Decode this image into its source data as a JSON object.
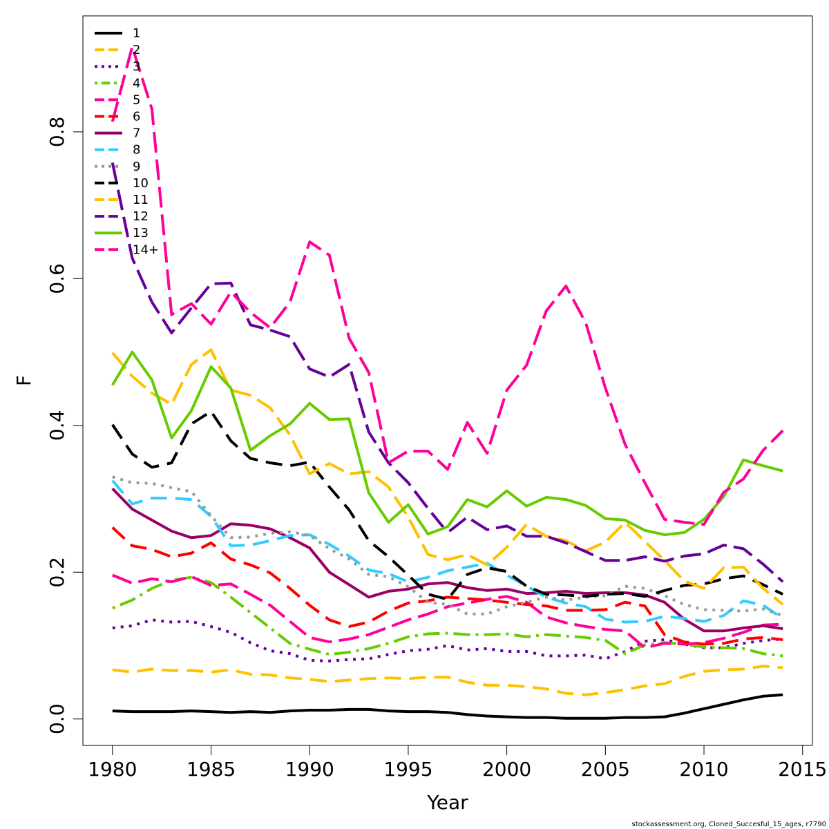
{
  "chart_data": {
    "type": "line",
    "xlabel": "Year",
    "ylabel": "F",
    "xlim": [
      1978.5,
      2015.5
    ],
    "ylim": [
      -0.036,
      0.958
    ],
    "x_ticks": [
      1980,
      1985,
      1990,
      1995,
      2000,
      2005,
      2010,
      2015
    ],
    "y_ticks": [
      0.0,
      0.2,
      0.4,
      0.6,
      0.8
    ],
    "x_tick_labels": [
      "1980",
      "1985",
      "1990",
      "1995",
      "2000",
      "2005",
      "2010",
      "2015"
    ],
    "y_tick_labels": [
      "0.0",
      "0.2",
      "0.4",
      "0.6",
      "0.8"
    ],
    "legend_position": "top-left",
    "x": [
      1980,
      1981,
      1982,
      1983,
      1984,
      1985,
      1986,
      1987,
      1988,
      1989,
      1990,
      1991,
      1992,
      1993,
      1994,
      1995,
      1996,
      1997,
      1998,
      1999,
      2000,
      2001,
      2002,
      2003,
      2004,
      2005,
      2006,
      2007,
      2008,
      2009,
      2010,
      2011,
      2012,
      2013,
      2014
    ],
    "series": [
      {
        "name": "1",
        "color": "#000000",
        "dash": "solid",
        "values": [
          0.011,
          0.01,
          0.01,
          0.01,
          0.011,
          0.01,
          0.009,
          0.01,
          0.009,
          0.011,
          0.012,
          0.012,
          0.013,
          0.013,
          0.011,
          0.01,
          0.01,
          0.009,
          0.006,
          0.004,
          0.003,
          0.002,
          0.002,
          0.001,
          0.001,
          0.001,
          0.002,
          0.002,
          0.003,
          0.008,
          0.014,
          0.02,
          0.026,
          0.031,
          0.033
        ]
      },
      {
        "name": "2",
        "color": "#FFC000",
        "dash": "dash",
        "values": [
          0.067,
          0.064,
          0.068,
          0.066,
          0.066,
          0.064,
          0.067,
          0.061,
          0.06,
          0.056,
          0.054,
          0.051,
          0.053,
          0.055,
          0.056,
          0.055,
          0.057,
          0.057,
          0.05,
          0.046,
          0.046,
          0.044,
          0.041,
          0.035,
          0.033,
          0.036,
          0.04,
          0.045,
          0.048,
          0.058,
          0.065,
          0.067,
          0.068,
          0.072,
          0.07
        ]
      },
      {
        "name": "3",
        "color": "#660099",
        "dash": "dot",
        "values": [
          0.124,
          0.127,
          0.135,
          0.132,
          0.133,
          0.126,
          0.118,
          0.104,
          0.093,
          0.089,
          0.08,
          0.079,
          0.081,
          0.082,
          0.088,
          0.093,
          0.095,
          0.1,
          0.094,
          0.096,
          0.092,
          0.092,
          0.086,
          0.086,
          0.087,
          0.082,
          0.092,
          0.106,
          0.108,
          0.102,
          0.097,
          0.097,
          0.103,
          0.107,
          0.109
        ]
      },
      {
        "name": "4",
        "color": "#66CC00",
        "dash": "dashdot",
        "values": [
          0.151,
          0.162,
          0.178,
          0.189,
          0.193,
          0.186,
          0.166,
          0.145,
          0.124,
          0.103,
          0.095,
          0.088,
          0.091,
          0.096,
          0.103,
          0.112,
          0.116,
          0.117,
          0.115,
          0.115,
          0.116,
          0.112,
          0.115,
          0.113,
          0.111,
          0.107,
          0.089,
          0.101,
          0.104,
          0.102,
          0.098,
          0.097,
          0.096,
          0.089,
          0.086
        ]
      },
      {
        "name": "5",
        "color": "#FF0099",
        "dash": "longdash",
        "values": [
          0.196,
          0.185,
          0.191,
          0.187,
          0.194,
          0.182,
          0.184,
          0.17,
          0.155,
          0.133,
          0.111,
          0.105,
          0.109,
          0.115,
          0.125,
          0.135,
          0.143,
          0.153,
          0.158,
          0.163,
          0.167,
          0.159,
          0.139,
          0.131,
          0.126,
          0.122,
          0.12,
          0.097,
          0.103,
          0.102,
          0.104,
          0.11,
          0.118,
          0.128,
          0.129
        ]
      },
      {
        "name": "6",
        "color": "#FF0000",
        "dash": "dash",
        "values": [
          0.261,
          0.236,
          0.231,
          0.221,
          0.226,
          0.24,
          0.218,
          0.21,
          0.199,
          0.178,
          0.155,
          0.135,
          0.126,
          0.132,
          0.147,
          0.158,
          0.161,
          0.166,
          0.164,
          0.162,
          0.159,
          0.156,
          0.154,
          0.148,
          0.148,
          0.149,
          0.159,
          0.154,
          0.115,
          0.105,
          0.102,
          0.103,
          0.109,
          0.111,
          0.108
        ]
      },
      {
        "name": "7",
        "color": "#990066",
        "dash": "solid",
        "values": [
          0.314,
          0.286,
          0.271,
          0.256,
          0.247,
          0.25,
          0.266,
          0.264,
          0.259,
          0.247,
          0.233,
          0.2,
          0.183,
          0.166,
          0.174,
          0.177,
          0.184,
          0.186,
          0.179,
          0.175,
          0.177,
          0.171,
          0.172,
          0.174,
          0.171,
          0.172,
          0.172,
          0.169,
          0.159,
          0.136,
          0.12,
          0.12,
          0.124,
          0.127,
          0.123
        ]
      },
      {
        "name": "8",
        "color": "#33CCFF",
        "dash": "dash",
        "values": [
          0.325,
          0.293,
          0.301,
          0.301,
          0.299,
          0.276,
          0.236,
          0.237,
          0.243,
          0.25,
          0.251,
          0.238,
          0.222,
          0.203,
          0.198,
          0.187,
          0.193,
          0.202,
          0.207,
          0.212,
          0.196,
          0.181,
          0.166,
          0.158,
          0.153,
          0.136,
          0.132,
          0.133,
          0.14,
          0.137,
          0.133,
          0.141,
          0.161,
          0.155,
          0.137
        ]
      },
      {
        "name": "9",
        "color": "#999999",
        "dash": "dot",
        "values": [
          0.33,
          0.322,
          0.321,
          0.315,
          0.31,
          0.277,
          0.247,
          0.248,
          0.253,
          0.255,
          0.25,
          0.232,
          0.218,
          0.197,
          0.194,
          0.18,
          0.159,
          0.156,
          0.143,
          0.143,
          0.153,
          0.159,
          0.166,
          0.162,
          0.166,
          0.168,
          0.181,
          0.178,
          0.168,
          0.156,
          0.149,
          0.148,
          0.147,
          0.15,
          0.141
        ]
      },
      {
        "name": "10",
        "color": "#000000",
        "dash": "dash",
        "values": [
          0.401,
          0.361,
          0.343,
          0.349,
          0.402,
          0.419,
          0.379,
          0.355,
          0.349,
          0.345,
          0.35,
          0.316,
          0.285,
          0.243,
          0.221,
          0.196,
          0.17,
          0.163,
          0.197,
          0.206,
          0.201,
          0.181,
          0.17,
          0.169,
          0.167,
          0.17,
          0.171,
          0.167,
          0.175,
          0.182,
          0.184,
          0.191,
          0.195,
          0.183,
          0.17
        ]
      },
      {
        "name": "11",
        "color": "#FFC000",
        "dash": "longdash",
        "values": [
          0.499,
          0.467,
          0.444,
          0.429,
          0.483,
          0.503,
          0.448,
          0.441,
          0.424,
          0.387,
          0.334,
          0.348,
          0.334,
          0.337,
          0.316,
          0.275,
          0.224,
          0.217,
          0.224,
          0.21,
          0.234,
          0.265,
          0.249,
          0.243,
          0.229,
          0.241,
          0.268,
          0.242,
          0.216,
          0.188,
          0.178,
          0.206,
          0.207,
          0.178,
          0.156
        ]
      },
      {
        "name": "12",
        "color": "#660099",
        "dash": "longdash",
        "values": [
          0.758,
          0.628,
          0.568,
          0.526,
          0.56,
          0.593,
          0.594,
          0.537,
          0.53,
          0.521,
          0.477,
          0.466,
          0.483,
          0.391,
          0.349,
          0.322,
          0.287,
          0.254,
          0.275,
          0.258,
          0.263,
          0.249,
          0.249,
          0.24,
          0.228,
          0.216,
          0.216,
          0.221,
          0.215,
          0.222,
          0.225,
          0.237,
          0.232,
          0.211,
          0.187
        ]
      },
      {
        "name": "13",
        "color": "#66CC00",
        "dash": "solid",
        "values": [
          0.455,
          0.5,
          0.462,
          0.383,
          0.42,
          0.48,
          0.451,
          0.366,
          0.386,
          0.402,
          0.43,
          0.408,
          0.409,
          0.308,
          0.268,
          0.292,
          0.252,
          0.262,
          0.299,
          0.289,
          0.311,
          0.29,
          0.302,
          0.299,
          0.291,
          0.273,
          0.271,
          0.257,
          0.251,
          0.254,
          0.272,
          0.303,
          0.353,
          0.345,
          0.338
        ]
      },
      {
        "name": "14+",
        "color": "#FF0099",
        "dash": "longdash",
        "values": [
          0.814,
          0.916,
          0.831,
          0.551,
          0.566,
          0.538,
          0.582,
          0.554,
          0.533,
          0.568,
          0.65,
          0.632,
          0.519,
          0.472,
          0.349,
          0.365,
          0.365,
          0.34,
          0.404,
          0.362,
          0.448,
          0.482,
          0.556,
          0.59,
          0.54,
          0.451,
          0.374,
          0.322,
          0.272,
          0.268,
          0.265,
          0.309,
          0.327,
          0.366,
          0.393
        ]
      }
    ]
  },
  "footnote": "stockassessment.org, Cloned_Succesful_15_ages, r7790"
}
